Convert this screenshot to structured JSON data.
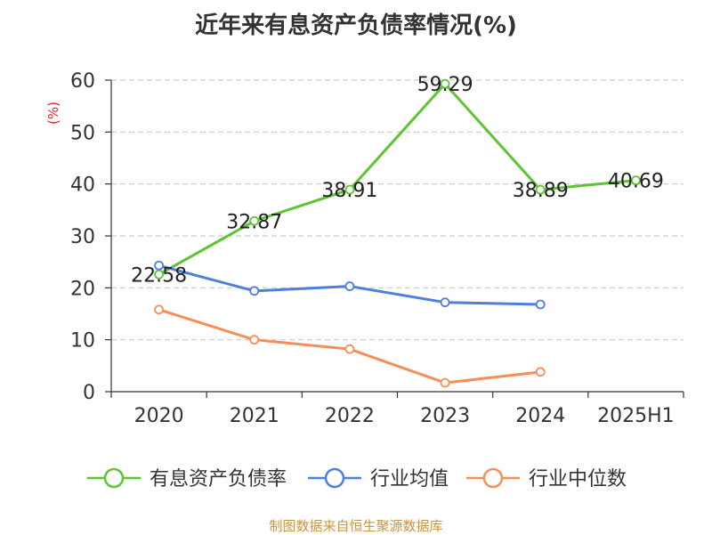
{
  "chart_data": {
    "type": "line",
    "title": "近年来有息资产负债率情况(%)",
    "ylabel": "(%)",
    "xlabel": "",
    "categories": [
      "2020",
      "2021",
      "2022",
      "2023",
      "2024",
      "2025H1"
    ],
    "ylim": [
      0,
      60
    ],
    "yticks": [
      0,
      10,
      20,
      30,
      40,
      50,
      60
    ],
    "grid": true,
    "legend_position": "bottom",
    "series": [
      {
        "name": "有息资产负债率",
        "color": "#5cc531",
        "values": [
          22.58,
          32.87,
          38.91,
          59.29,
          38.89,
          40.69
        ],
        "data_labels": [
          "22.58",
          "32.87",
          "38.91",
          "59.29",
          "38.89",
          "40.69"
        ]
      },
      {
        "name": "行业均值",
        "color": "#4e7fdc",
        "values": [
          24.3,
          19.4,
          20.3,
          17.2,
          16.8,
          null
        ]
      },
      {
        "name": "行业中位数",
        "color": "#f48f5a",
        "values": [
          15.8,
          10.0,
          8.2,
          1.7,
          3.8,
          null
        ]
      }
    ]
  },
  "source_note": "制图数据来自恒生聚源数据库",
  "colors": {
    "title": "#333333",
    "axis": "#333333",
    "grid": "#cccccc",
    "ylabel": "#e02020",
    "source_note": "#c8963e"
  }
}
